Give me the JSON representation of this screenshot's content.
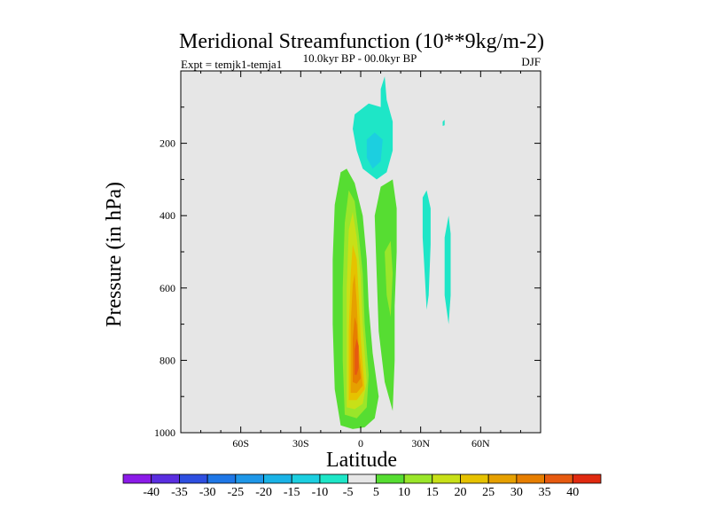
{
  "chart_data": {
    "type": "heatmap",
    "subtype": "filled-contour",
    "title": "Meridional Streamfunction (10**9kg/m-2)",
    "left_string": "Expt = temjk1-temja1",
    "center_string": "10.0kyr BP - 00.0kyr BP",
    "right_string": "DJF",
    "xlabel": "Latitude",
    "ylabel": "Pressure (in hPa)",
    "xlim": [
      -90,
      90
    ],
    "ylim": [
      1000,
      0
    ],
    "x_ticks": [
      {
        "value": -60,
        "label": "60S"
      },
      {
        "value": -30,
        "label": "30S"
      },
      {
        "value": 0,
        "label": "0"
      },
      {
        "value": 30,
        "label": "30N"
      },
      {
        "value": 60,
        "label": "60N"
      }
    ],
    "y_ticks": [
      {
        "value": 200,
        "label": "200"
      },
      {
        "value": 400,
        "label": "400"
      },
      {
        "value": 600,
        "label": "600"
      },
      {
        "value": 800,
        "label": "800"
      },
      {
        "value": 1000,
        "label": "1000"
      }
    ],
    "background_color": "#e6e6e6",
    "colorbar": {
      "levels": [
        -40,
        -35,
        -30,
        -25,
        -20,
        -15,
        -10,
        -5,
        5,
        10,
        15,
        20,
        25,
        30,
        35,
        40
      ],
      "labels": [
        "-40",
        "-35",
        "-30",
        "-25",
        "-20",
        "-15",
        "-10",
        "-5",
        "5",
        "10",
        "15",
        "20",
        "25",
        "30",
        "35",
        "40"
      ],
      "colors": [
        "#8b1be8",
        "#5a2ee0",
        "#2e4fe0",
        "#1f77e6",
        "#1f97e8",
        "#1ab3e6",
        "#1ccfe0",
        "#1ee6c7",
        "#e6e6e6",
        "#56dd32",
        "#9ae62a",
        "#c8e018",
        "#e6c200",
        "#e6a000",
        "#e67e00",
        "#e65a10",
        "#e02a10"
      ]
    },
    "regions": [
      {
        "name": "positive cell 5-10",
        "value": 7,
        "points": [
          [
            -10,
            980
          ],
          [
            -13,
            880
          ],
          [
            -14,
            700
          ],
          [
            -14,
            520
          ],
          [
            -13,
            370
          ],
          [
            -10,
            280
          ],
          [
            -7,
            270
          ],
          [
            -3,
            310
          ],
          [
            1,
            400
          ],
          [
            3,
            520
          ],
          [
            4,
            650
          ],
          [
            6,
            780
          ],
          [
            9,
            900
          ],
          [
            7,
            960
          ],
          [
            2,
            985
          ],
          [
            -4,
            990
          ]
        ]
      },
      {
        "name": "positive cell 10-15",
        "value": 12,
        "points": [
          [
            -8,
            950
          ],
          [
            -9,
            800
          ],
          [
            -9,
            600
          ],
          [
            -8,
            420
          ],
          [
            -6,
            330
          ],
          [
            -3,
            360
          ],
          [
            -1,
            450
          ],
          [
            1,
            560
          ],
          [
            2,
            700
          ],
          [
            4,
            840
          ],
          [
            3,
            930
          ],
          [
            -2,
            960
          ]
        ]
      },
      {
        "name": "positive cell 15-20",
        "value": 17,
        "points": [
          [
            -7,
            930
          ],
          [
            -7,
            760
          ],
          [
            -7,
            600
          ],
          [
            -6,
            440
          ],
          [
            -4,
            390
          ],
          [
            -2,
            460
          ],
          [
            0,
            570
          ],
          [
            1,
            700
          ],
          [
            3,
            860
          ],
          [
            1,
            920
          ],
          [
            -3,
            935
          ]
        ]
      },
      {
        "name": "positive cell 20-25",
        "value": 22,
        "points": [
          [
            -6,
            910
          ],
          [
            -6,
            720
          ],
          [
            -5,
            560
          ],
          [
            -4,
            480
          ],
          [
            -2,
            520
          ],
          [
            -1,
            620
          ],
          [
            0,
            740
          ],
          [
            2,
            880
          ],
          [
            -2,
            910
          ]
        ]
      },
      {
        "name": "positive cell 25-30",
        "value": 27,
        "points": [
          [
            -5,
            890
          ],
          [
            -5,
            700
          ],
          [
            -4,
            590
          ],
          [
            -3,
            560
          ],
          [
            -2,
            640
          ],
          [
            -1,
            760
          ],
          [
            1,
            870
          ],
          [
            -2,
            890
          ]
        ]
      },
      {
        "name": "positive cell 30-35",
        "value": 32,
        "points": [
          [
            -4,
            860
          ],
          [
            -4,
            740
          ],
          [
            -3,
            680
          ],
          [
            -2,
            700
          ],
          [
            -1,
            800
          ],
          [
            0,
            850
          ],
          [
            -2,
            865
          ]
        ]
      },
      {
        "name": "positive cell 35-40",
        "value": 37,
        "points": [
          [
            -3,
            840
          ],
          [
            -3,
            770
          ],
          [
            -2,
            740
          ],
          [
            -1,
            760
          ],
          [
            -1,
            820
          ],
          [
            -2,
            840
          ]
        ]
      },
      {
        "name": "upper negative cell -5",
        "value": -7,
        "points": [
          [
            -3,
            120
          ],
          [
            4,
            90
          ],
          [
            10,
            100
          ],
          [
            10,
            50
          ],
          [
            12,
            15
          ],
          [
            13,
            80
          ],
          [
            16,
            140
          ],
          [
            16,
            220
          ],
          [
            13,
            280
          ],
          [
            8,
            300
          ],
          [
            1,
            270
          ],
          [
            -2,
            220
          ],
          [
            -4,
            160
          ]
        ]
      },
      {
        "name": "upper negative cell -10",
        "value": -12,
        "points": [
          [
            3,
            190
          ],
          [
            7,
            170
          ],
          [
            11,
            190
          ],
          [
            10,
            250
          ],
          [
            6,
            270
          ],
          [
            3,
            240
          ]
        ]
      },
      {
        "name": "eastern positive lobe",
        "value": 7,
        "points": [
          [
            7,
            400
          ],
          [
            10,
            320
          ],
          [
            16,
            300
          ],
          [
            18,
            380
          ],
          [
            18,
            500
          ],
          [
            17,
            650
          ],
          [
            17,
            800
          ],
          [
            16,
            940
          ],
          [
            12,
            860
          ],
          [
            9,
            720
          ],
          [
            8,
            560
          ]
        ]
      },
      {
        "name": "eastern positive lobe 10-15",
        "value": 12,
        "points": [
          [
            12,
            500
          ],
          [
            15,
            470
          ],
          [
            16,
            560
          ],
          [
            15,
            680
          ],
          [
            13,
            620
          ]
        ]
      },
      {
        "name": "subtropical negative band",
        "value": -7,
        "points": [
          [
            31,
            350
          ],
          [
            33,
            330
          ],
          [
            35,
            380
          ],
          [
            35,
            480
          ],
          [
            34,
            620
          ],
          [
            33,
            660
          ],
          [
            32,
            560
          ],
          [
            31,
            460
          ]
        ]
      },
      {
        "name": "midlatitude negative band",
        "value": -7,
        "points": [
          [
            42,
            460
          ],
          [
            44,
            400
          ],
          [
            45,
            450
          ],
          [
            45,
            620
          ],
          [
            44,
            700
          ],
          [
            42,
            620
          ]
        ]
      },
      {
        "name": "midlatitude negative speck",
        "value": -7,
        "points": [
          [
            41,
            140
          ],
          [
            42,
            135
          ],
          [
            42,
            150
          ],
          [
            41,
            152
          ]
        ]
      }
    ]
  }
}
